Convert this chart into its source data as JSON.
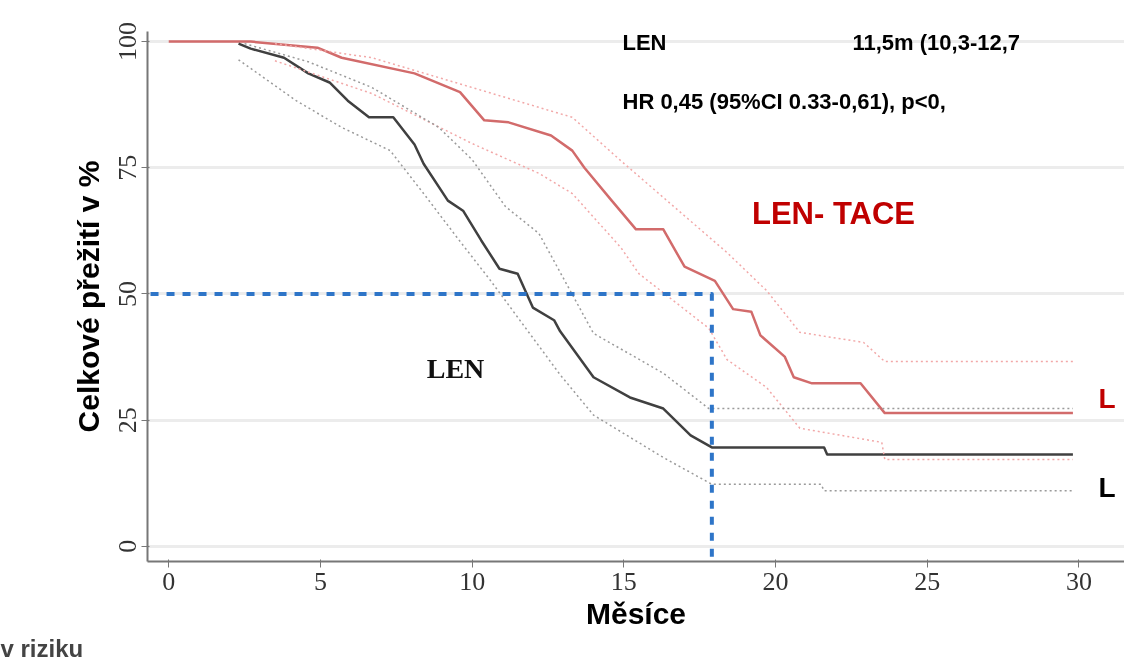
{
  "chart_data": {
    "type": "line",
    "xlabel": "Měsíce",
    "ylabel": "Celkové přežití v %",
    "xlim": [
      -0.7,
      31.5
    ],
    "ylim": [
      -3,
      102
    ],
    "xticks": [
      0,
      5,
      10,
      15,
      20,
      25,
      30
    ],
    "yticks": [
      0,
      25,
      50,
      75,
      100
    ],
    "grid": "y",
    "series": [
      {
        "color": "#d26b6b",
        "line_style": "solid",
        "x": [
          0,
          2.7,
          4.9,
          5.7,
          8.1,
          9.6,
          10.4,
          11.2,
          12.6,
          13.3,
          13.7,
          14.6,
          15.4,
          16.3,
          17.0,
          18.0,
          18.6,
          19.2,
          19.5,
          20.3,
          20.6,
          21.2,
          22.8,
          23.6,
          29.8
        ],
        "values": [
          100,
          100,
          98.8,
          96.8,
          93.7,
          90,
          84.4,
          84,
          81.4,
          78.4,
          75,
          68.5,
          62.8,
          62.8,
          55.4,
          52.6,
          47,
          46.5,
          41.8,
          37.6,
          33.5,
          32.3,
          32.3,
          26.4,
          26.4
        ]
      },
      {
        "color": "#404040",
        "line_style": "solid",
        "x": [
          2.3,
          2.7,
          3.8,
          4.6,
          5.3,
          5.9,
          6.6,
          7.4,
          8.1,
          8.4,
          9.2,
          9.7,
          10.3,
          10.9,
          11.5,
          12.0,
          12.7,
          12.9,
          14.0,
          15.2,
          16.3,
          17.2,
          17.9,
          21.6,
          21.7,
          29.8
        ],
        "values": [
          99.6,
          98.6,
          96.8,
          93.7,
          91.9,
          88.3,
          85,
          85,
          79.6,
          75.8,
          68.5,
          66.5,
          60.6,
          55,
          54,
          47.3,
          44.8,
          42.6,
          33.5,
          29.5,
          27.3,
          22,
          19.6,
          19.6,
          18.2,
          18.2
        ]
      },
      {
        "color": "#f2a8a8",
        "line_style": "dotted",
        "x": [
          3.5,
          6.7,
          10.0,
          13.3,
          14.9,
          18.4,
          19.7,
          20.8,
          22.9,
          23.6,
          29.8
        ],
        "values": [
          99.6,
          96.8,
          90.9,
          85,
          76.4,
          58.2,
          50.7,
          42.4,
          40.4,
          36.6,
          36.6
        ]
      },
      {
        "color": "#f2a8a8",
        "line_style": "dotted",
        "x": [
          3.5,
          6.7,
          10.0,
          12.2,
          13.3,
          14.9,
          15.5,
          17.8,
          18.4,
          19.7,
          20.8,
          23.5,
          23.6,
          29.8
        ],
        "values": [
          96.2,
          89.7,
          79.8,
          73.9,
          69.9,
          59.2,
          54,
          43.2,
          37,
          31.5,
          23.4,
          20.6,
          17.2,
          17.2
        ]
      },
      {
        "color": "#9a9a9a",
        "line_style": "dotted",
        "x": [
          2.5,
          4.6,
          6.7,
          8.9,
          10.0,
          11.1,
          12.2,
          14.0,
          16.3,
          17.8,
          29.8
        ],
        "values": [
          99.6,
          96,
          90.9,
          83,
          76.6,
          67.3,
          62,
          42.2,
          34.3,
          27.3,
          27.3
        ]
      },
      {
        "color": "#9a9a9a",
        "line_style": "dotted",
        "x": [
          2.3,
          4.2,
          5.7,
          7.3,
          8.4,
          9.5,
          10.6,
          12.9,
          14.0,
          16.3,
          17.9,
          21.5,
          21.6,
          29.8
        ],
        "values": [
          96.4,
          88.3,
          83,
          78.4,
          69.9,
          61.2,
          52.7,
          34,
          26,
          17.6,
          12.3,
          12.3,
          11,
          11
        ]
      },
      {
        "color": "#2e75c8",
        "line_style": "dashed",
        "x": [
          -0.6,
          17.9,
          17.9
        ],
        "values": [
          50,
          50,
          -3
        ]
      }
    ],
    "annotations": [
      "LEN",
      "LEN- TACE",
      "LEN",
      "11,5m (10,3-12,7",
      "HR 0,45 (95%CI 0.33-0,61), p<0,",
      "L",
      "L",
      "v riziku"
    ]
  }
}
